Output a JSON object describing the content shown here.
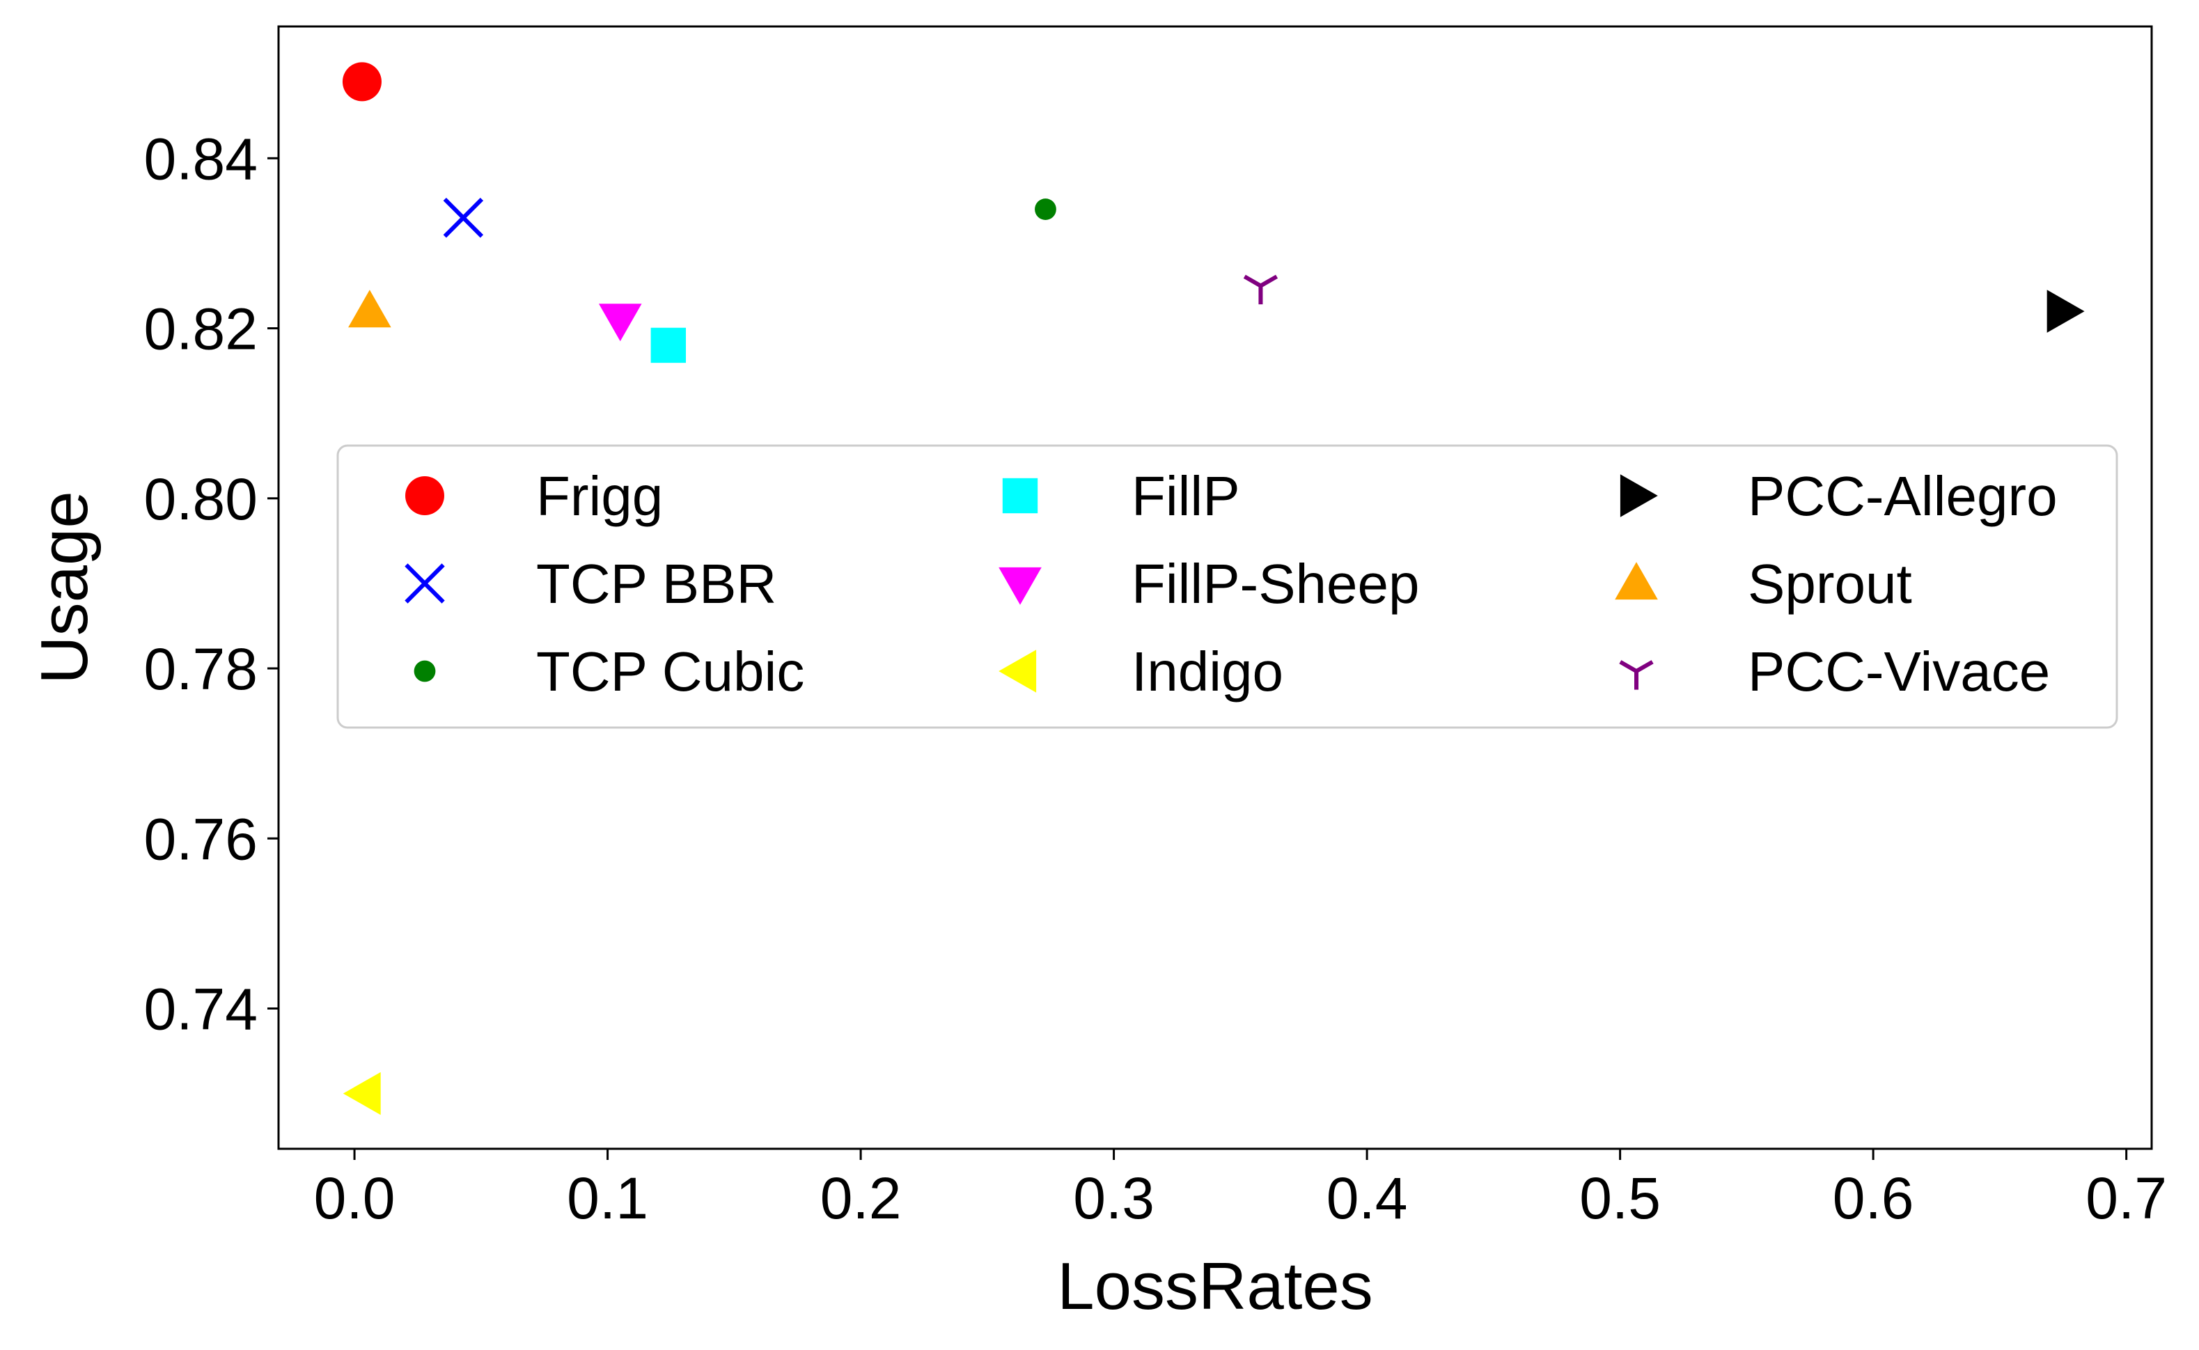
{
  "chart_data": {
    "type": "scatter",
    "xlabel": "LossRates",
    "ylabel": "Usage",
    "xlim": [
      -0.03,
      0.71
    ],
    "ylim": [
      0.7235,
      0.8555
    ],
    "xticks": [
      "0.0",
      "0.1",
      "0.2",
      "0.3",
      "0.4",
      "0.5",
      "0.6",
      "0.7"
    ],
    "yticks": [
      "0.74",
      "0.76",
      "0.78",
      "0.80",
      "0.82",
      "0.84"
    ],
    "grid": false,
    "legend_position": "center",
    "legend_columns": 3,
    "series": [
      {
        "name": "Frigg",
        "marker": "circle",
        "color": "#ff0000",
        "x": 0.003,
        "y": 0.849
      },
      {
        "name": "TCP BBR",
        "marker": "x",
        "color": "#0000ff",
        "x": 0.043,
        "y": 0.833
      },
      {
        "name": "TCP Cubic",
        "marker": "point",
        "color": "#008000",
        "x": 0.273,
        "y": 0.834
      },
      {
        "name": "FillP",
        "marker": "square",
        "color": "#00ffff",
        "x": 0.124,
        "y": 0.818
      },
      {
        "name": "FillP-Sheep",
        "marker": "triangle-down",
        "color": "#ff00ff",
        "x": 0.105,
        "y": 0.821
      },
      {
        "name": "Indigo",
        "marker": "triangle-left",
        "color": "#ffff00",
        "x": 0.004,
        "y": 0.73
      },
      {
        "name": "PCC-Allegro",
        "marker": "triangle-right",
        "color": "#000000",
        "x": 0.675,
        "y": 0.822
      },
      {
        "name": "Sprout",
        "marker": "triangle-up",
        "color": "#ffa500",
        "x": 0.006,
        "y": 0.822
      },
      {
        "name": "PCC-Vivace",
        "marker": "tri-down",
        "color": "#800080",
        "x": 0.358,
        "y": 0.825
      }
    ]
  }
}
